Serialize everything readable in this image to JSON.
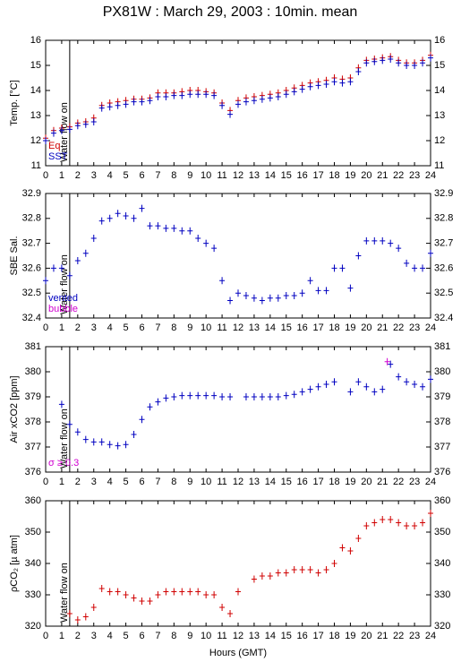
{
  "title": "PX81W : March 29, 2003 : 10min. mean",
  "chart_data": [
    {
      "type": "scatter",
      "ylabel": "Temp. [°C]",
      "xlim": [
        0,
        24
      ],
      "xticks": [
        0,
        1,
        2,
        3,
        4,
        5,
        6,
        7,
        8,
        9,
        10,
        11,
        12,
        13,
        14,
        15,
        16,
        17,
        18,
        19,
        20,
        21,
        22,
        23,
        24
      ],
      "ylim": [
        11,
        16
      ],
      "yticks": [
        11,
        12,
        13,
        14,
        15,
        16
      ],
      "annotation": {
        "text": "Water flow on",
        "x": 1.5
      },
      "x": [
        0,
        0.5,
        1,
        1.5,
        2,
        2.5,
        3,
        3.5,
        4,
        4.5,
        5,
        5.5,
        6,
        6.5,
        7,
        7.5,
        8,
        8.5,
        9,
        9.5,
        10,
        10.5,
        11,
        11.5,
        12,
        12.5,
        13,
        13.5,
        14,
        14.5,
        15,
        15.5,
        16,
        16.5,
        17,
        17.5,
        18,
        18.5,
        19,
        19.5,
        20,
        20.5,
        21,
        21.5,
        22,
        22.5,
        23,
        23.5,
        24
      ],
      "series": [
        {
          "name": "Eq",
          "color": "#d00000",
          "values": [
            12.1,
            12.4,
            12.5,
            12.55,
            12.7,
            12.75,
            12.9,
            13.4,
            13.5,
            13.55,
            13.6,
            13.65,
            13.65,
            13.7,
            13.9,
            13.9,
            13.9,
            13.95,
            14.0,
            14.0,
            13.95,
            13.9,
            13.5,
            13.2,
            13.6,
            13.7,
            13.75,
            13.8,
            13.85,
            13.9,
            14.0,
            14.1,
            14.2,
            14.3,
            14.35,
            14.4,
            14.5,
            14.45,
            14.5,
            14.9,
            15.2,
            15.25,
            15.3,
            15.35,
            15.2,
            15.1,
            15.1,
            15.2,
            15.4
          ]
        },
        {
          "name": "SST",
          "color": "#0000c0",
          "values": [
            12.0,
            12.3,
            12.4,
            12.45,
            12.6,
            12.65,
            12.75,
            13.3,
            13.35,
            13.4,
            13.45,
            13.55,
            13.55,
            13.6,
            13.75,
            13.75,
            13.8,
            13.8,
            13.85,
            13.85,
            13.85,
            13.8,
            13.4,
            13.05,
            13.45,
            13.55,
            13.6,
            13.65,
            13.7,
            13.75,
            13.85,
            13.95,
            14.05,
            14.15,
            14.2,
            14.25,
            14.35,
            14.3,
            14.35,
            14.75,
            15.1,
            15.15,
            15.2,
            15.25,
            15.1,
            15.0,
            15.0,
            15.1,
            15.3
          ]
        }
      ]
    },
    {
      "type": "scatter",
      "ylabel": "SBE Sal.",
      "xlim": [
        0,
        24
      ],
      "xticks": [
        0,
        1,
        2,
        3,
        4,
        5,
        6,
        7,
        8,
        9,
        10,
        11,
        12,
        13,
        14,
        15,
        16,
        17,
        18,
        19,
        20,
        21,
        22,
        23,
        24
      ],
      "ylim": [
        32.4,
        32.9
      ],
      "yticks": [
        32.4,
        32.5,
        32.6,
        32.7,
        32.8,
        32.9
      ],
      "annotation": {
        "text": "Water flow on",
        "x": 1.5
      },
      "x": [
        0,
        0.5,
        1,
        1.5,
        2,
        2.5,
        3,
        3.5,
        4,
        4.5,
        5,
        5.5,
        6,
        6.5,
        7,
        7.5,
        8,
        8.5,
        9,
        9.5,
        10,
        10.5,
        11,
        11.5,
        12,
        12.5,
        13,
        13.5,
        14,
        14.5,
        15,
        15.5,
        16,
        16.5,
        17,
        17.5,
        18,
        18.5,
        19,
        19.5,
        20,
        20.5,
        21,
        21.5,
        22,
        22.5,
        23,
        23.5,
        24
      ],
      "series": [
        {
          "name": "vented",
          "color": "#0000c0",
          "values": [
            32.55,
            32.6,
            32.6,
            32.57,
            32.63,
            32.66,
            32.72,
            32.79,
            32.8,
            32.82,
            32.81,
            32.8,
            32.84,
            32.77,
            32.77,
            32.76,
            32.76,
            32.75,
            32.75,
            32.72,
            32.7,
            32.68,
            32.55,
            32.47,
            32.5,
            32.49,
            32.48,
            32.47,
            32.48,
            32.48,
            32.49,
            32.49,
            32.5,
            32.55,
            32.51,
            32.51,
            32.6,
            32.6,
            32.52,
            32.65,
            32.71,
            32.71,
            32.71,
            32.7,
            32.68,
            32.62,
            32.6,
            32.6,
            32.66
          ]
        },
        {
          "name": "bubble",
          "color": "#d000d0",
          "x": [],
          "values": []
        }
      ]
    },
    {
      "type": "scatter",
      "ylabel": "Air xCO2 [ppm]",
      "xlim": [
        0,
        24
      ],
      "xticks": [
        0,
        1,
        2,
        3,
        4,
        5,
        6,
        7,
        8,
        9,
        10,
        11,
        12,
        13,
        14,
        15,
        16,
        17,
        18,
        19,
        20,
        21,
        22,
        23,
        24
      ],
      "ylim": [
        376,
        381
      ],
      "yticks": [
        376,
        377,
        378,
        379,
        380,
        381
      ],
      "annotation": {
        "text": "Water flow on",
        "x": 1.5
      },
      "x": [
        0,
        0.5,
        1,
        1.5,
        2,
        2.5,
        3,
        3.5,
        4,
        4.5,
        5,
        5.5,
        6,
        6.5,
        7,
        7.5,
        8,
        8.5,
        9,
        9.5,
        10,
        10.5,
        11,
        11.5,
        12,
        12.5,
        13,
        13.5,
        14,
        14.5,
        15,
        15.5,
        16,
        16.5,
        17,
        17.5,
        18,
        18.5,
        19,
        19.5,
        20,
        20.5,
        21,
        21.5,
        22,
        22.5,
        23,
        23.5,
        24
      ],
      "series": [
        {
          "name": null,
          "color": "#0000c0",
          "values": [
            null,
            null,
            378.7,
            377.9,
            377.6,
            377.3,
            377.2,
            377.2,
            377.1,
            377.05,
            377.1,
            377.5,
            378.1,
            378.6,
            378.8,
            378.95,
            379.0,
            379.05,
            379.05,
            379.05,
            379.05,
            379.05,
            379.0,
            379.0,
            null,
            379.0,
            379.0,
            379.0,
            379.0,
            379.0,
            379.05,
            379.1,
            379.2,
            379.3,
            379.4,
            379.5,
            379.6,
            null,
            379.2,
            379.6,
            379.4,
            379.2,
            379.3,
            380.3,
            379.8,
            379.6,
            379.5,
            379.4,
            379.7
          ]
        },
        {
          "name": "σ ≥ 0.3",
          "color": "#d000d0",
          "x": [
            21.3
          ],
          "values": [
            380.4
          ]
        }
      ]
    },
    {
      "type": "scatter",
      "ylabel": "ρCO₂ [µ atm]",
      "xlabel": "Hours (GMT)",
      "xlim": [
        0,
        24
      ],
      "xticks": [
        0,
        1,
        2,
        3,
        4,
        5,
        6,
        7,
        8,
        9,
        10,
        11,
        12,
        13,
        14,
        15,
        16,
        17,
        18,
        19,
        20,
        21,
        22,
        23,
        24
      ],
      "ylim": [
        320,
        360
      ],
      "yticks": [
        320,
        330,
        340,
        350,
        360
      ],
      "annotation": {
        "text": "Water flow on",
        "x": 1.5
      },
      "x": [
        0,
        0.5,
        1,
        1.5,
        2,
        2.5,
        3,
        3.5,
        4,
        4.5,
        5,
        5.5,
        6,
        6.5,
        7,
        7.5,
        8,
        8.5,
        9,
        9.5,
        10,
        10.5,
        11,
        11.5,
        12,
        12.5,
        13,
        13.5,
        14,
        14.5,
        15,
        15.5,
        16,
        16.5,
        17,
        17.5,
        18,
        18.5,
        19,
        19.5,
        20,
        20.5,
        21,
        21.5,
        22,
        22.5,
        23,
        23.5,
        24
      ],
      "series": [
        {
          "name": null,
          "color": "#d00000",
          "values": [
            null,
            null,
            null,
            324,
            322,
            323,
            326,
            332,
            331,
            331,
            330,
            329,
            328,
            328,
            330,
            331,
            331,
            331,
            331,
            331,
            330,
            330,
            326,
            324,
            331,
            null,
            335,
            336,
            336,
            337,
            337,
            338,
            338,
            338,
            337,
            338,
            340,
            345,
            344,
            348,
            352,
            353,
            354,
            354,
            353,
            352,
            352,
            353,
            356
          ]
        }
      ]
    }
  ]
}
